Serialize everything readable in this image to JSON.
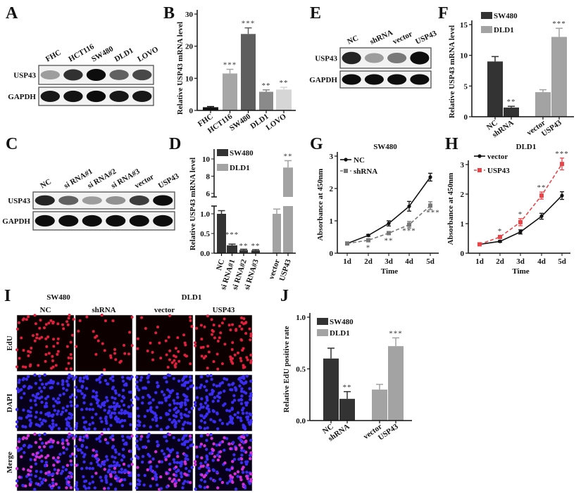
{
  "panels": {
    "A": {
      "label": "A",
      "lanes": [
        "FHC",
        "HCT116",
        "SW480",
        "DLD1",
        "LOVO"
      ],
      "rows": [
        {
          "name": "USP43",
          "intensity": [
            0.35,
            0.8,
            0.95,
            0.6,
            0.7
          ]
        },
        {
          "name": "GAPDH",
          "intensity": [
            0.9,
            0.92,
            0.95,
            0.9,
            0.9
          ]
        }
      ]
    },
    "B": {
      "label": "B"
    },
    "C": {
      "label": "C",
      "lanes": [
        "NC",
        "si RNA#1",
        "si RNA#2",
        "si RNA#3",
        "vector",
        "USP43"
      ],
      "rows": [
        {
          "name": "USP43",
          "intensity": [
            0.85,
            0.6,
            0.35,
            0.4,
            0.75,
            0.95
          ]
        },
        {
          "name": "GAPDH",
          "intensity": [
            0.95,
            0.95,
            0.95,
            0.95,
            0.95,
            0.95
          ]
        }
      ]
    },
    "D": {
      "label": "D"
    },
    "E": {
      "label": "E",
      "lanes": [
        "NC",
        "shRNA",
        "vector",
        "USP43"
      ],
      "rows": [
        {
          "name": "USP43",
          "intensity": [
            0.85,
            0.35,
            0.5,
            0.95
          ]
        },
        {
          "name": "GAPDH",
          "intensity": [
            0.95,
            0.95,
            0.95,
            0.95
          ]
        }
      ]
    },
    "F": {
      "label": "F"
    },
    "G": {
      "label": "G"
    },
    "H": {
      "label": "H"
    },
    "I": {
      "label": "I",
      "groups": [
        "SW480",
        "DLD1"
      ],
      "columns": [
        "NC",
        "shRNA",
        "vector",
        "USP43"
      ],
      "rows": [
        "EdU",
        "DAPI",
        "Merge"
      ],
      "edu_positive_fraction": [
        0.85,
        0.3,
        0.5,
        0.9
      ]
    },
    "J": {
      "label": "J"
    }
  },
  "chart_data": [
    {
      "panel": "B",
      "type": "bar",
      "ylabel": "Relative USP43 mRNA level",
      "ylim": [
        0,
        30
      ],
      "yticks": [
        0,
        10,
        20,
        30
      ],
      "categories": [
        "FHC",
        "HCT116",
        "SW480",
        "DLD1",
        "LOVO"
      ],
      "values": [
        1.0,
        11.5,
        23.8,
        5.8,
        6.5
      ],
      "errors": [
        0.2,
        1.3,
        1.9,
        0.6,
        0.7
      ],
      "significance": [
        "",
        "***",
        "***",
        "**",
        "**"
      ],
      "colors": [
        "#111111",
        "#a6a6a6",
        "#5e5e5e",
        "#8a8a8a",
        "#d6d6d6"
      ]
    },
    {
      "panel": "D",
      "type": "bar",
      "ylabel": "Relative USP43 mRNA level",
      "broken_axis": true,
      "ylim_lower": [
        0,
        1.2
      ],
      "yticks_lower": [
        "0.0",
        "0.5",
        "1.0"
      ],
      "ylim_upper": [
        5.6,
        11
      ],
      "yticks_upper": [
        "6",
        "8",
        "10"
      ],
      "categories": [
        "NC",
        "si RNA#1",
        "si RNA#2",
        "si RNA#3",
        "vector",
        "USP43"
      ],
      "values": [
        1.0,
        0.2,
        0.08,
        0.07,
        1.0,
        9.0
      ],
      "errors": [
        0.08,
        0.03,
        0.02,
        0.02,
        0.12,
        0.8
      ],
      "significance": [
        "",
        "***",
        "**",
        "**",
        "",
        "**"
      ],
      "series_of_bar": [
        0,
        0,
        0,
        0,
        1,
        1
      ],
      "legend": [
        {
          "name": "SW480",
          "color": "#333333"
        },
        {
          "name": "DLD1",
          "color": "#a3a3a3"
        }
      ]
    },
    {
      "panel": "F",
      "type": "bar",
      "ylabel": "Relative USP43 mRNA level",
      "ylim": [
        0,
        17
      ],
      "yticks": [
        0,
        5,
        10,
        15
      ],
      "categories": [
        "NC",
        "shRNA",
        "vector",
        "USP43"
      ],
      "values": [
        9.0,
        1.5,
        4.0,
        13.0
      ],
      "errors": [
        0.8,
        0.2,
        0.4,
        1.4
      ],
      "significance": [
        "",
        "**",
        "",
        "***"
      ],
      "series_of_bar": [
        0,
        0,
        1,
        1
      ],
      "legend": [
        {
          "name": "SW480",
          "color": "#333333"
        },
        {
          "name": "DLD1",
          "color": "#a3a3a3"
        }
      ]
    },
    {
      "panel": "G",
      "type": "line",
      "title": "SW480",
      "xlabel": "Time",
      "ylabel": "Absorbance at 450nm",
      "ylim": [
        0,
        3
      ],
      "yticks": [
        0,
        1,
        2,
        3
      ],
      "x": [
        "1d",
        "2d",
        "3d",
        "4d",
        "5d"
      ],
      "series": [
        {
          "name": "NC",
          "values": [
            0.3,
            0.55,
            0.92,
            1.45,
            2.35
          ],
          "errors": [
            0.02,
            0.03,
            0.08,
            0.15,
            0.12
          ],
          "color": "#111111",
          "dashed": false
        },
        {
          "name": "shRNA",
          "values": [
            0.3,
            0.4,
            0.62,
            0.88,
            1.47
          ],
          "errors": [
            0.02,
            0.03,
            0.04,
            0.1,
            0.12
          ],
          "color": "#777777",
          "dashed": true
        }
      ],
      "significance": [
        "",
        "*",
        "**",
        "***",
        "***"
      ]
    },
    {
      "panel": "H",
      "type": "line",
      "title": "DLD1",
      "xlabel": "Time",
      "ylabel": "Absorbance at 450nm",
      "ylim": [
        0,
        3.4
      ],
      "yticks": [
        0,
        1,
        2,
        3
      ],
      "x": [
        "1d",
        "2d",
        "3d",
        "4d",
        "5d"
      ],
      "series": [
        {
          "name": "vector",
          "values": [
            0.3,
            0.4,
            0.72,
            1.25,
            1.95
          ],
          "errors": [
            0.02,
            0.03,
            0.07,
            0.1,
            0.13
          ],
          "color": "#111111",
          "dashed": false
        },
        {
          "name": "USP43",
          "values": [
            0.3,
            0.55,
            1.05,
            1.95,
            3.02
          ],
          "errors": [
            0.02,
            0.05,
            0.12,
            0.12,
            0.2
          ],
          "color": "#e8454a",
          "dashed": true
        }
      ],
      "significance": [
        "",
        "*",
        "*",
        "**",
        "***"
      ]
    },
    {
      "panel": "J",
      "type": "bar",
      "ylabel": "Relative EdU positive rate",
      "ylim": [
        0,
        1.0
      ],
      "yticks": [
        "0.0",
        "0.5",
        "1.0"
      ],
      "categories": [
        "NC",
        "shRNA",
        "vector",
        "USP43"
      ],
      "values": [
        0.6,
        0.21,
        0.3,
        0.72
      ],
      "errors": [
        0.1,
        0.07,
        0.05,
        0.08
      ],
      "significance": [
        "",
        "**",
        "",
        "***"
      ],
      "series_of_bar": [
        0,
        0,
        1,
        1
      ],
      "legend": [
        {
          "name": "SW480",
          "color": "#333333"
        },
        {
          "name": "DLD1",
          "color": "#a3a3a3"
        }
      ]
    }
  ]
}
